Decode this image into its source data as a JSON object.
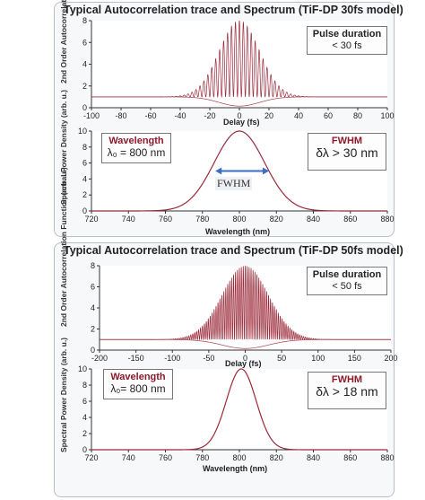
{
  "chart_data": [
    {
      "type": "line",
      "panel": 1,
      "subplot": "autocorrelation",
      "title": "Typical Autocorrelation trace and Spectrum (TiF-DP 30fs model)",
      "xlabel": "Delay (fs)",
      "ylabel": "2nd Order Autocorrelation Function (arb. u.)",
      "xlim": [
        -100,
        100
      ],
      "ylim": [
        0,
        8
      ],
      "xticks": [
        -100,
        -80,
        -60,
        -40,
        -20,
        0,
        20,
        40,
        60,
        80,
        100
      ],
      "yticks": [
        0,
        2,
        4,
        6,
        8
      ],
      "series": [
        {
          "baseline": 1,
          "peak": 8,
          "center": 0,
          "envelope_fwhm": 32,
          "fringe_period": 2.67,
          "color": "#9b2a3a"
        }
      ],
      "annotation": {
        "title": "Pulse duration",
        "value": "< 30 fs"
      }
    },
    {
      "type": "line",
      "panel": 1,
      "subplot": "spectrum",
      "xlabel": "Wavelength (nm)",
      "ylabel": "Spectral Power Density (arb. u.)",
      "xlim": [
        720,
        880
      ],
      "ylim": [
        0,
        10
      ],
      "xticks": [
        720,
        740,
        760,
        780,
        800,
        820,
        840,
        860,
        880
      ],
      "yticks": [
        0,
        2,
        4,
        6,
        8,
        10
      ],
      "series": [
        {
          "center": 800,
          "fwhm": 32,
          "peak": 10,
          "color": "#9b2a3a"
        }
      ],
      "fwhm_marker": {
        "label": "FWHM",
        "from": 787,
        "to": 816,
        "level": 5
      },
      "annotation_left": {
        "title": "Wavelength",
        "value": "λ₀ = 800 nm"
      },
      "annotation_right": {
        "title": "FWHM",
        "value": "δλ > 30 nm"
      }
    },
    {
      "type": "line",
      "panel": 2,
      "subplot": "autocorrelation",
      "title": "Typical Autocorrelation trace and Spectrum (TiF-DP 50fs model)",
      "xlabel": "Delay (fs)",
      "ylabel": "2nd Order Autocorrelation Function (arb. u.)",
      "xlim": [
        -200,
        200
      ],
      "ylim": [
        0,
        8
      ],
      "xticks": [
        -200,
        -150,
        -100,
        -50,
        0,
        50,
        100,
        150,
        200
      ],
      "yticks": [
        0,
        2,
        4,
        6,
        8
      ],
      "series": [
        {
          "baseline": 1,
          "peak": 8,
          "center": 0,
          "envelope_fwhm": 75,
          "fringe_period": 2.67,
          "color": "#9b2a3a"
        }
      ],
      "annotation": {
        "title": "Pulse duration",
        "value": "< 50 fs"
      }
    },
    {
      "type": "line",
      "panel": 2,
      "subplot": "spectrum",
      "xlabel": "Wavelength (nm)",
      "ylabel": "Spectral Power Density (arb. u.)",
      "xlim": [
        720,
        880
      ],
      "ylim": [
        0,
        10
      ],
      "xticks": [
        720,
        740,
        760,
        780,
        800,
        820,
        840,
        860,
        880
      ],
      "yticks": [
        0,
        2,
        4,
        6,
        8,
        10
      ],
      "series": [
        {
          "center": 801,
          "fwhm": 19,
          "peak": 10,
          "color": "#9b2a3a"
        }
      ],
      "annotation_left": {
        "title": "Wavelength",
        "value": "λ₀= 800 nm"
      },
      "annotation_right": {
        "title": "FWHM",
        "value": "δλ > 18 nm"
      }
    }
  ]
}
